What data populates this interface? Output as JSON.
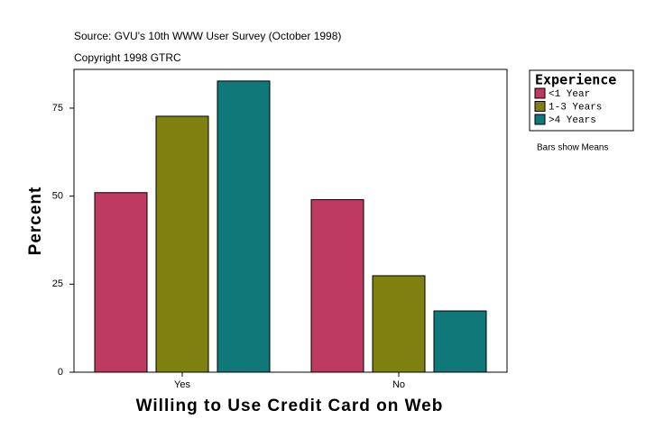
{
  "chart_data": {
    "type": "bar",
    "subtitle_lines": [
      "Source: GVU's 10th WWW User Survey (October 1998)",
      "Copyright 1998 GTRC"
    ],
    "x_label": "Willing to Use Credit Card on Web",
    "y_label": "Percent",
    "categories": [
      "Yes",
      "No"
    ],
    "series": [
      {
        "name": "<1 Year",
        "color": "#bf3a63",
        "values": [
          51,
          49
        ]
      },
      {
        "name": "1-3 Years",
        "color": "#808010",
        "values": [
          72.7,
          27.4
        ]
      },
      {
        "name": ">4 Years",
        "color": "#107878",
        "values": [
          82.7,
          17.4
        ]
      }
    ],
    "legend_title": "Experience",
    "legend_position": "right",
    "note": "Bars show Means",
    "ylim": [
      0,
      86
    ],
    "yticks": [
      0,
      25,
      50,
      75
    ]
  }
}
